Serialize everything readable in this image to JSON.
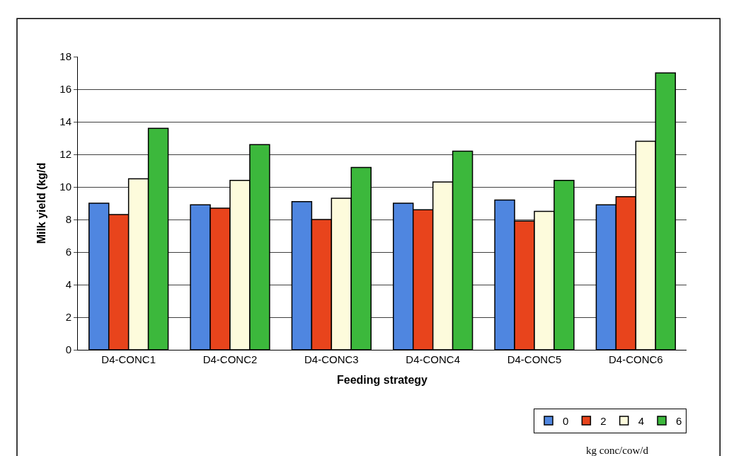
{
  "chart_data": {
    "type": "bar",
    "xlabel": "Feeding strategy",
    "ylabel": "Milk yield (kg/d",
    "categories": [
      "D4-CONC1",
      "D4-CONC2",
      "D4-CONC3",
      "D4-CONC4",
      "D4-CONC5",
      "D4-CONC6"
    ],
    "series": [
      {
        "name": "0",
        "color": "#4f86e0",
        "values": [
          9.0,
          8.9,
          9.1,
          9.0,
          9.2,
          8.9
        ]
      },
      {
        "name": "2",
        "color": "#e8441c",
        "values": [
          8.3,
          8.7,
          8.0,
          8.6,
          7.9,
          9.4
        ]
      },
      {
        "name": "4",
        "color": "#fdfbdc",
        "values": [
          10.5,
          10.4,
          9.3,
          10.3,
          8.5,
          12.8
        ]
      },
      {
        "name": "6",
        "color": "#3cb83c",
        "values": [
          13.6,
          12.6,
          11.2,
          12.2,
          10.4,
          17.0
        ]
      }
    ],
    "ylim": [
      0,
      18
    ],
    "yticks": [
      0,
      2,
      4,
      6,
      8,
      10,
      12,
      14,
      16,
      18
    ],
    "grid": "y",
    "legend": "bottom right",
    "annotations": [
      "kg conc/cow/d"
    ]
  }
}
